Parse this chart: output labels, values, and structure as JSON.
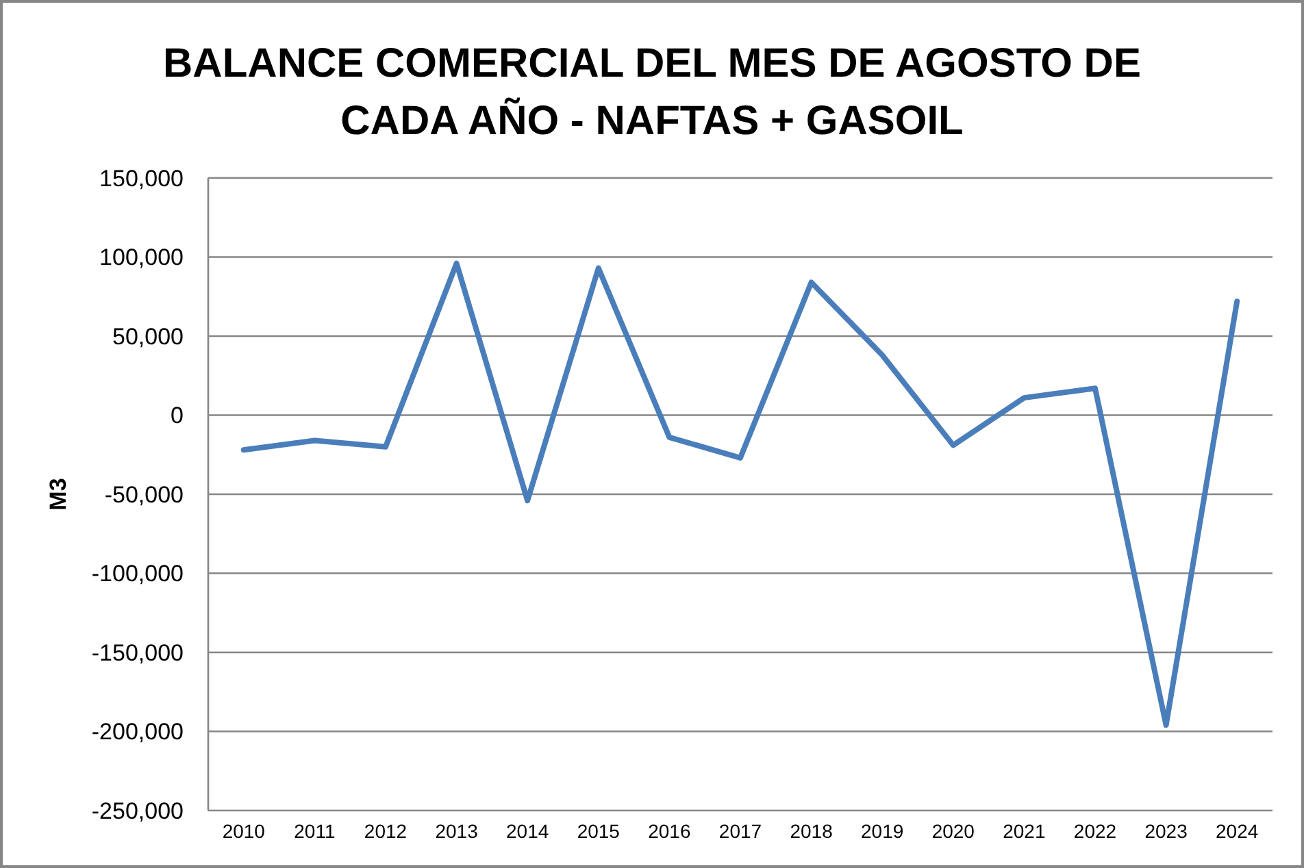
{
  "chart_data": {
    "type": "line",
    "title": "BALANCE COMERCIAL DEL MES DE AGOSTO DE CADA AÑO - NAFTAS + GASOIL",
    "ylabel": "M3",
    "categories": [
      "2010",
      "2011",
      "2012",
      "2013",
      "2014",
      "2015",
      "2016",
      "2017",
      "2018",
      "2019",
      "2020",
      "2021",
      "2022",
      "2023",
      "2024"
    ],
    "series": [
      {
        "color": "#4a7ebb",
        "values": [
          -22000,
          -16000,
          -20000,
          96000,
          -54000,
          93000,
          -14000,
          -27000,
          84000,
          38000,
          -19000,
          11000,
          17000,
          -196000,
          72000
        ]
      }
    ],
    "ylim": [
      -250000,
      150000
    ],
    "yticks": [
      {
        "value": -250000,
        "label": "-250,000"
      },
      {
        "value": -200000,
        "label": "-200,000"
      },
      {
        "value": -150000,
        "label": "-150,000"
      },
      {
        "value": -100000,
        "label": "-100,000"
      },
      {
        "value": -50000,
        "label": "-50,000"
      },
      0,
      {
        "value": 50000,
        "label": "50,000"
      },
      {
        "value": 100000,
        "label": "100,000"
      },
      {
        "value": 150000,
        "label": "150,000"
      }
    ],
    "grid": "y",
    "marker": "none",
    "line_style": "solid"
  }
}
